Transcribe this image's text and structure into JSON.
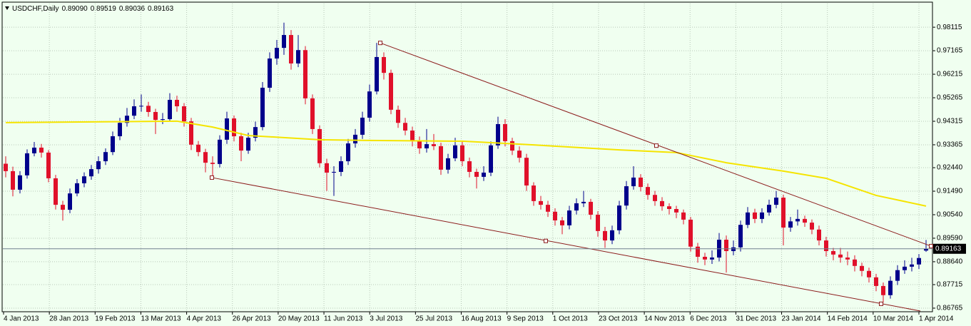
{
  "chart_data": {
    "type": "candlestick",
    "title": "USDCHF,Daily",
    "header_ohlc": [
      "0.89090",
      "0.89519",
      "0.89036",
      "0.89163"
    ],
    "up_color": "#00008b",
    "down_color": "#e0102a",
    "grid": true,
    "ylim": [
      0.8662,
      0.9907
    ],
    "yticks": [
      0.98115,
      0.97165,
      0.96215,
      0.95265,
      0.94315,
      0.93365,
      {
        "value": 0.9244,
        "label": "0.92440"
      },
      {
        "value": 0.9149,
        "label": "0.91490"
      },
      {
        "value": 0.9054,
        "label": "0.90540"
      },
      {
        "value": 0.8959,
        "label": "0.89590"
      },
      {
        "value": 0.8864,
        "label": "0.88640"
      },
      0.87715,
      0.86765
    ],
    "date_labels": [
      "4 Jan 2013",
      "28 Jan 2013",
      "19 Feb 2013",
      "13 Mar 2013",
      "4 Apr 2013",
      "26 Apr 2013",
      "20 May 2013",
      "11 Jun 2013",
      "3 Jul 2013",
      "25 Jul 2013",
      "16 Aug 2013",
      "9 Sep 2013",
      "1 Oct 2013",
      "23 Oct 2013",
      "14 Nov 2013",
      "6 Dec 2013",
      "31 Dec 2013",
      "23 Jan 2014",
      "14 Feb 2014",
      "10 Mar 2014",
      "1 Apr 2014"
    ],
    "current_price": 0.89163,
    "ohlc": [
      [
        0.926,
        0.929,
        0.9205,
        0.923
      ],
      [
        0.923,
        0.9248,
        0.9128,
        0.9155
      ],
      [
        0.9155,
        0.923,
        0.914,
        0.9213
      ],
      [
        0.9213,
        0.9318,
        0.92,
        0.9302
      ],
      [
        0.9302,
        0.9348,
        0.929,
        0.9325
      ],
      [
        0.9325,
        0.934,
        0.9285,
        0.9305
      ],
      [
        0.9305,
        0.9315,
        0.9185,
        0.9201
      ],
      [
        0.9201,
        0.9215,
        0.9075,
        0.9094
      ],
      [
        0.9094,
        0.911,
        0.903,
        0.9074
      ],
      [
        0.9074,
        0.916,
        0.906,
        0.914
      ],
      [
        0.914,
        0.9198,
        0.9128,
        0.9181
      ],
      [
        0.9181,
        0.9225,
        0.9165,
        0.9209
      ],
      [
        0.9209,
        0.9255,
        0.9195,
        0.9238
      ],
      [
        0.9238,
        0.929,
        0.922,
        0.927
      ],
      [
        0.927,
        0.9322,
        0.9255,
        0.9307
      ],
      [
        0.9307,
        0.939,
        0.9295,
        0.9371
      ],
      [
        0.9371,
        0.9445,
        0.9355,
        0.9425
      ],
      [
        0.9425,
        0.9485,
        0.941,
        0.9454
      ],
      [
        0.9454,
        0.952,
        0.944,
        0.9492
      ],
      [
        0.9492,
        0.954,
        0.947,
        0.9494
      ],
      [
        0.9494,
        0.951,
        0.945,
        0.9469
      ],
      [
        0.9469,
        0.9482,
        0.938,
        0.9437
      ],
      [
        0.9437,
        0.9465,
        0.942,
        0.944
      ],
      [
        0.944,
        0.9545,
        0.943,
        0.9518
      ],
      [
        0.9518,
        0.9535,
        0.947,
        0.9492
      ],
      [
        0.9492,
        0.9505,
        0.941,
        0.9431
      ],
      [
        0.9431,
        0.9445,
        0.9315,
        0.9337
      ],
      [
        0.9337,
        0.9352,
        0.929,
        0.9307
      ],
      [
        0.9307,
        0.932,
        0.9225,
        0.9264
      ],
      [
        0.9264,
        0.929,
        0.921,
        0.9259
      ],
      [
        0.9259,
        0.9375,
        0.9245,
        0.9357
      ],
      [
        0.9357,
        0.947,
        0.934,
        0.9443
      ],
      [
        0.9443,
        0.9455,
        0.935,
        0.9371
      ],
      [
        0.9371,
        0.9385,
        0.927,
        0.9313
      ],
      [
        0.9313,
        0.9385,
        0.93,
        0.9365
      ],
      [
        0.9365,
        0.943,
        0.935,
        0.9408
      ],
      [
        0.9408,
        0.959,
        0.9395,
        0.9567
      ],
      [
        0.9567,
        0.971,
        0.955,
        0.9685
      ],
      [
        0.9685,
        0.976,
        0.966,
        0.9728
      ],
      [
        0.9728,
        0.983,
        0.97,
        0.978
      ],
      [
        0.978,
        0.98,
        0.964,
        0.9665
      ],
      [
        0.9665,
        0.978,
        0.965,
        0.9719
      ],
      [
        0.9719,
        0.9735,
        0.95,
        0.9524
      ],
      [
        0.9524,
        0.954,
        0.938,
        0.94
      ],
      [
        0.94,
        0.9415,
        0.9245,
        0.9262
      ],
      [
        0.9262,
        0.928,
        0.915,
        0.9224
      ],
      [
        0.9224,
        0.925,
        0.913,
        0.9227
      ],
      [
        0.9227,
        0.929,
        0.921,
        0.927
      ],
      [
        0.927,
        0.936,
        0.9255,
        0.9342
      ],
      [
        0.9342,
        0.94,
        0.9325,
        0.9377
      ],
      [
        0.9377,
        0.947,
        0.936,
        0.9446
      ],
      [
        0.9446,
        0.958,
        0.943,
        0.9552
      ],
      [
        0.9552,
        0.9748,
        0.954,
        0.9691
      ],
      [
        0.9691,
        0.971,
        0.96,
        0.9627
      ],
      [
        0.9627,
        0.964,
        0.946,
        0.9478
      ],
      [
        0.9478,
        0.9495,
        0.9405,
        0.9425
      ],
      [
        0.9425,
        0.9445,
        0.9375,
        0.9394
      ],
      [
        0.9394,
        0.941,
        0.933,
        0.9351
      ],
      [
        0.9351,
        0.937,
        0.93,
        0.9322
      ],
      [
        0.9322,
        0.94,
        0.9305,
        0.9339
      ],
      [
        0.9339,
        0.938,
        0.9315,
        0.9331
      ],
      [
        0.9331,
        0.9345,
        0.9215,
        0.9236
      ],
      [
        0.9236,
        0.93,
        0.922,
        0.9282
      ],
      [
        0.9282,
        0.9365,
        0.927,
        0.9334
      ],
      [
        0.9334,
        0.935,
        0.925,
        0.927
      ],
      [
        0.927,
        0.9285,
        0.9205,
        0.9227
      ],
      [
        0.9227,
        0.924,
        0.916,
        0.9207
      ],
      [
        0.9207,
        0.925,
        0.919,
        0.9224
      ],
      [
        0.9224,
        0.935,
        0.921,
        0.9334
      ],
      [
        0.9334,
        0.945,
        0.932,
        0.942
      ],
      [
        0.942,
        0.944,
        0.933,
        0.9351
      ],
      [
        0.9351,
        0.9365,
        0.9295,
        0.9313
      ],
      [
        0.9313,
        0.933,
        0.9265,
        0.9284
      ],
      [
        0.9284,
        0.93,
        0.915,
        0.9172
      ],
      [
        0.9172,
        0.9185,
        0.909,
        0.9109
      ],
      [
        0.9109,
        0.913,
        0.9075,
        0.9094
      ],
      [
        0.9094,
        0.911,
        0.9045,
        0.9066
      ],
      [
        0.9066,
        0.908,
        0.901,
        0.9031
      ],
      [
        0.9031,
        0.9045,
        0.8975,
        0.9011
      ],
      [
        0.9011,
        0.909,
        0.8995,
        0.9071
      ],
      [
        0.9071,
        0.912,
        0.9055,
        0.91
      ],
      [
        0.91,
        0.915,
        0.9085,
        0.9106
      ],
      [
        0.9106,
        0.9118,
        0.9035,
        0.9054
      ],
      [
        0.9054,
        0.9068,
        0.8965,
        0.8988
      ],
      [
        0.8988,
        0.9005,
        0.892,
        0.895
      ],
      [
        0.895,
        0.901,
        0.8935,
        0.8991
      ],
      [
        0.8991,
        0.911,
        0.8975,
        0.9091
      ],
      [
        0.9091,
        0.919,
        0.9075,
        0.9169
      ],
      [
        0.9169,
        0.925,
        0.9155,
        0.9204
      ],
      [
        0.9204,
        0.9218,
        0.9148,
        0.9166
      ],
      [
        0.9166,
        0.918,
        0.9115,
        0.9134
      ],
      [
        0.9134,
        0.915,
        0.909,
        0.9109
      ],
      [
        0.9109,
        0.9125,
        0.907,
        0.9088
      ],
      [
        0.9088,
        0.91,
        0.9055,
        0.9077
      ],
      [
        0.9077,
        0.909,
        0.904,
        0.9063
      ],
      [
        0.9063,
        0.9075,
        0.9015,
        0.9034
      ],
      [
        0.9034,
        0.9045,
        0.8905,
        0.8925
      ],
      [
        0.8925,
        0.894,
        0.886,
        0.8884
      ],
      [
        0.8884,
        0.89,
        0.885,
        0.8873
      ],
      [
        0.8873,
        0.891,
        0.8855,
        0.8881
      ],
      [
        0.8881,
        0.898,
        0.8865,
        0.8953
      ],
      [
        0.8953,
        0.897,
        0.882,
        0.8907
      ],
      [
        0.8907,
        0.895,
        0.889,
        0.8922
      ],
      [
        0.8922,
        0.903,
        0.8905,
        0.9013
      ],
      [
        0.9013,
        0.9085,
        0.9,
        0.9063
      ],
      [
        0.9063,
        0.9078,
        0.902,
        0.9037
      ],
      [
        0.9037,
        0.908,
        0.902,
        0.9063
      ],
      [
        0.9063,
        0.9115,
        0.905,
        0.9094
      ],
      [
        0.9094,
        0.915,
        0.908,
        0.9123
      ],
      [
        0.9123,
        0.9135,
        0.893,
        0.9002
      ],
      [
        0.9002,
        0.9045,
        0.8985,
        0.9027
      ],
      [
        0.9027,
        0.9075,
        0.901,
        0.9037
      ],
      [
        0.9037,
        0.905,
        0.9005,
        0.9022
      ],
      [
        0.9022,
        0.9035,
        0.8975,
        0.8994
      ],
      [
        0.8994,
        0.901,
        0.893,
        0.895
      ],
      [
        0.895,
        0.8965,
        0.8885,
        0.8907
      ],
      [
        0.8907,
        0.892,
        0.887,
        0.8893
      ],
      [
        0.8893,
        0.892,
        0.886,
        0.8881
      ],
      [
        0.8881,
        0.8905,
        0.885,
        0.8873
      ],
      [
        0.8873,
        0.889,
        0.8825,
        0.8847
      ],
      [
        0.8847,
        0.886,
        0.8805,
        0.8827
      ],
      [
        0.8827,
        0.884,
        0.878,
        0.8801
      ],
      [
        0.8801,
        0.8815,
        0.8745,
        0.8766
      ],
      [
        0.8766,
        0.878,
        0.87,
        0.8729
      ],
      [
        0.8729,
        0.8805,
        0.8715,
        0.8787
      ],
      [
        0.8787,
        0.885,
        0.877,
        0.883
      ],
      [
        0.883,
        0.887,
        0.8815,
        0.8844
      ],
      [
        0.8844,
        0.888,
        0.8825,
        0.8853
      ],
      [
        0.8853,
        0.8895,
        0.8835,
        0.8879
      ],
      [
        0.8909,
        0.89519,
        0.89036,
        0.89163
      ]
    ],
    "moving_average": {
      "color": "#f5e400",
      "x": [
        0,
        24,
        29,
        34,
        44,
        51,
        64,
        74,
        86,
        94,
        101,
        109,
        115,
        122,
        129
      ],
      "values": [
        0.9426,
        0.9432,
        0.9408,
        0.9374,
        0.9357,
        0.9354,
        0.9351,
        0.9336,
        0.9316,
        0.9305,
        0.9264,
        0.923,
        0.9201,
        0.9132,
        0.9089
      ]
    },
    "trendline_color": "#8b1a1a",
    "trendlines": [
      [
        [
          52.5,
          0.9748
        ],
        [
          129.7,
          0.8927
        ]
      ],
      [
        [
          28.9,
          0.9204
        ],
        [
          128.2,
          0.8665
        ]
      ]
    ],
    "anchors": [
      [
        52.5,
        0.9748
      ],
      [
        91.2,
        0.9333
      ],
      [
        129.7,
        0.8927
      ],
      [
        28.9,
        0.9204
      ],
      [
        75.7,
        0.8948
      ],
      [
        122.7,
        0.8694
      ]
    ]
  }
}
